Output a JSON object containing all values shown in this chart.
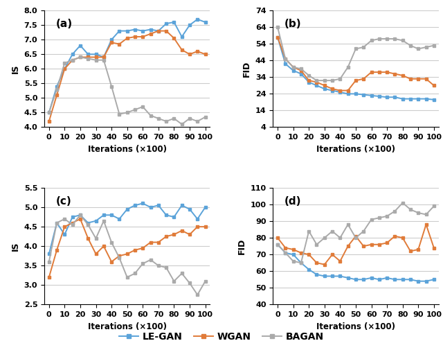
{
  "x": [
    0,
    5,
    10,
    15,
    20,
    25,
    30,
    35,
    40,
    45,
    50,
    55,
    60,
    65,
    70,
    75,
    80,
    85,
    90,
    95,
    100
  ],
  "a_legan": [
    4.5,
    5.4,
    6.0,
    6.5,
    6.8,
    6.5,
    6.5,
    6.4,
    7.0,
    7.3,
    7.3,
    7.35,
    7.3,
    7.35,
    7.3,
    7.55,
    7.6,
    7.1,
    7.5,
    7.7,
    7.6
  ],
  "a_wgan": [
    4.2,
    5.1,
    6.0,
    6.3,
    6.4,
    6.4,
    6.4,
    6.4,
    6.9,
    6.85,
    7.05,
    7.1,
    7.1,
    7.2,
    7.3,
    7.3,
    7.05,
    6.65,
    6.5,
    6.6,
    6.5
  ],
  "a_bagan": [
    4.5,
    5.3,
    6.2,
    6.3,
    6.4,
    6.35,
    6.3,
    6.3,
    5.4,
    4.45,
    4.5,
    4.6,
    4.7,
    4.4,
    4.3,
    4.2,
    4.3,
    4.1,
    4.3,
    4.2,
    4.35
  ],
  "b_legan": [
    58,
    42,
    38,
    36,
    31,
    29,
    27,
    26,
    25,
    24,
    24,
    23.5,
    23,
    22.5,
    22,
    22,
    21,
    21,
    21,
    21,
    20.5
  ],
  "b_wgan": [
    58,
    45,
    40,
    38,
    32,
    31,
    29,
    27,
    26,
    26,
    32,
    33,
    37,
    37,
    37,
    36,
    35,
    33,
    33,
    33,
    29
  ],
  "b_bagan": [
    64,
    45,
    40,
    39,
    35,
    32,
    32,
    32,
    33,
    40,
    51,
    52,
    56,
    57,
    57,
    57,
    56,
    53,
    51,
    52,
    53
  ],
  "c_legan": [
    3.8,
    4.6,
    4.3,
    4.75,
    4.8,
    4.6,
    4.65,
    4.8,
    4.8,
    4.7,
    4.95,
    5.05,
    5.1,
    5.0,
    5.05,
    4.8,
    4.75,
    5.05,
    4.95,
    4.7,
    5.0
  ],
  "c_wgan": [
    3.2,
    3.9,
    4.5,
    4.6,
    4.7,
    4.2,
    3.8,
    4.0,
    3.6,
    3.75,
    3.8,
    3.9,
    3.95,
    4.1,
    4.1,
    4.25,
    4.3,
    4.4,
    4.3,
    4.5,
    4.5
  ],
  "c_bagan": [
    3.6,
    4.6,
    4.7,
    4.55,
    4.8,
    4.55,
    4.2,
    4.65,
    4.1,
    3.7,
    3.2,
    3.3,
    3.55,
    3.65,
    3.5,
    3.45,
    3.1,
    3.3,
    3.05,
    2.75,
    3.1
  ],
  "d_legan": [
    76,
    71,
    70,
    65,
    61,
    58,
    57,
    57,
    57,
    56,
    55,
    55,
    56,
    55,
    56,
    55,
    55,
    55,
    54,
    54,
    55
  ],
  "d_wgan": [
    80,
    74,
    73,
    71,
    70,
    65,
    64,
    70,
    66,
    75,
    81,
    75,
    76,
    76,
    77,
    81,
    80,
    72,
    73,
    88,
    74
  ],
  "d_bagan": [
    76,
    71,
    66,
    65,
    84,
    76,
    80,
    84,
    80,
    88,
    80,
    84,
    91,
    92,
    93,
    96,
    101,
    97,
    95,
    94,
    99
  ],
  "color_legan": "#5BA3D9",
  "color_wgan": "#E07B39",
  "color_bagan": "#AAAAAA",
  "marker": "s",
  "markersize": 3.5,
  "linewidth": 1.4
}
